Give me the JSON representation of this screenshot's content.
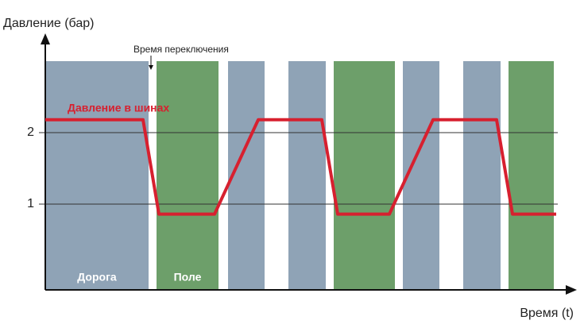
{
  "chart_data": {
    "type": "line",
    "y_label": "Давление (бар)",
    "x_label": "Время (t)",
    "annotation": {
      "text": "Время переключения",
      "x": 133
    },
    "regions": [
      {
        "x": [
          0,
          130
        ],
        "color": "#8fa3b6",
        "label": "Дорога"
      },
      {
        "x": [
          140,
          218
        ],
        "color": "#6d9f6a",
        "label": "Поле"
      },
      {
        "x": [
          230,
          276
        ],
        "color": "#8fa3b6"
      },
      {
        "x": [
          306,
          353
        ],
        "color": "#8fa3b6"
      },
      {
        "x": [
          363,
          440
        ],
        "color": "#6d9f6a"
      },
      {
        "x": [
          450,
          496
        ],
        "color": "#8fa3b6"
      },
      {
        "x": [
          526,
          573
        ],
        "color": "#8fa3b6"
      },
      {
        "x": [
          583,
          640
        ],
        "color": "#6d9f6a"
      }
    ],
    "x": [
      0,
      123,
      143,
      213,
      268,
      348,
      368,
      433,
      488,
      568,
      588,
      643
    ],
    "series": [
      {
        "name": "Давление в шинах",
        "color": "#d7202f",
        "values": [
          2.18,
          2.18,
          0.86,
          0.86,
          2.18,
          2.18,
          0.86,
          0.86,
          2.18,
          2.18,
          0.86,
          0.86
        ]
      }
    ],
    "xlim": [
      0,
      663
    ],
    "ylim": [
      -0.2,
      3
    ],
    "yticks": [
      1,
      2
    ],
    "grid": true
  }
}
